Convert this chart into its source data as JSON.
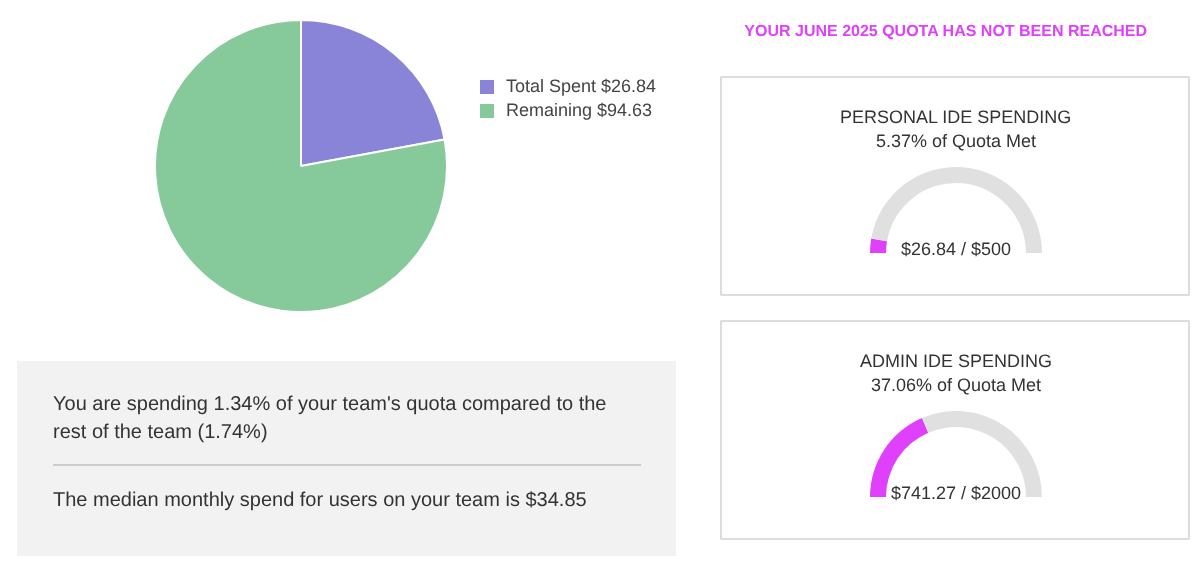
{
  "chart_data": [
    {
      "type": "pie",
      "categories": [
        "Total Spent $26.84",
        "Remaining $94.63"
      ],
      "values": [
        26.84,
        94.63
      ],
      "colors": [
        "#8a84d8",
        "#86c99a"
      ],
      "legend": "right"
    },
    {
      "type": "other",
      "title": "YOUR JUNE 2025 QUOTA HAS NOT BEEN REACHED"
    },
    {
      "type": "donut",
      "title": "PERSONAL IDE SPENDING",
      "subtitle": "5.37% of Quota Met",
      "categories": [
        null,
        null
      ],
      "values": [
        5.37,
        94.63
      ],
      "colors": [
        "#e040fb",
        "#e0e0e0"
      ],
      "annotations": [
        "$26.84 / $500"
      ]
    },
    {
      "type": "donut",
      "title": "ADMIN IDE SPENDING",
      "subtitle": "37.06% of Quota Met",
      "categories": [
        null,
        null
      ],
      "values": [
        37.06,
        62.94
      ],
      "colors": [
        "#e040fb",
        "#e0e0e0"
      ],
      "annotations": [
        "$741.27 / $2000"
      ]
    },
    {
      "type": "other",
      "annotations": [
        "You are spending 1.34% of your team's quota compared to the rest of the team (1.74%)",
        "The median monthly spend for users on your team is $34.85"
      ]
    }
  ]
}
